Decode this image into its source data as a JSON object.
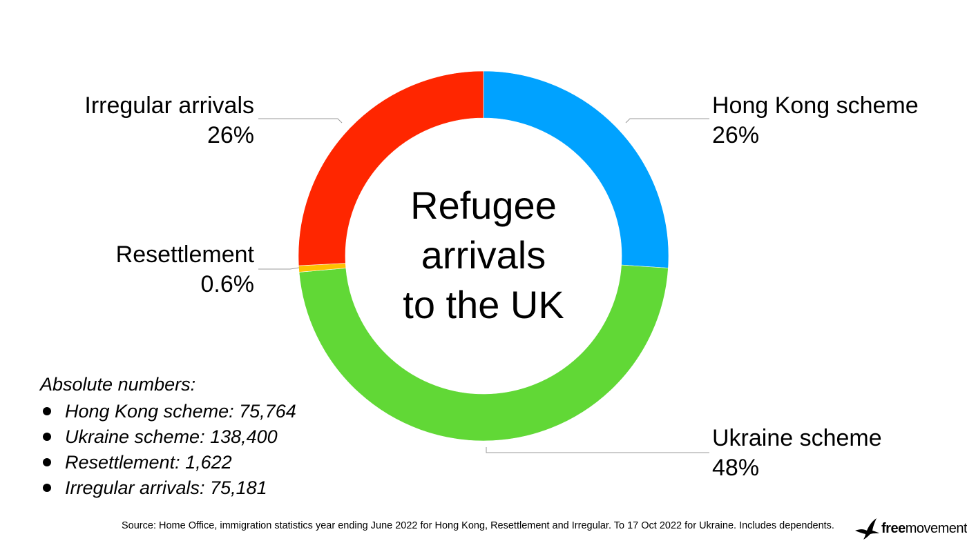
{
  "chart_data": {
    "type": "pie",
    "variant": "donut",
    "title": "Refugee arrivals to the UK",
    "title_lines": [
      "Refugee",
      "arrivals",
      "to the UK"
    ],
    "slices": [
      {
        "key": "hongkong",
        "label": "Hong Kong scheme",
        "percent_label": "26%",
        "value": 75764,
        "color": "#00a2ff"
      },
      {
        "key": "ukraine",
        "label": "Ukraine scheme",
        "percent_label": "48%",
        "value": 138400,
        "color": "#61d836"
      },
      {
        "key": "resettlement",
        "label": "Resettlement",
        "percent_label": "0.6%",
        "value": 1622,
        "color": "#ffc000"
      },
      {
        "key": "irregular",
        "label": "Irregular arrivals",
        "percent_label": "26%",
        "value": 75181,
        "color": "#ff2600"
      }
    ]
  },
  "absolute_numbers": {
    "heading": "Absolute numbers:",
    "items": [
      "Hong Kong scheme: 75,764",
      "Ukraine scheme: 138,400",
      "Resettlement: 1,622",
      "Irregular arrivals: 75,181"
    ]
  },
  "source": "Source: Home Office, immigration statistics year ending June 2022 for Hong Kong, Resettlement and Irregular. To 17 Oct 2022 for Ukraine. Includes dependents.",
  "logo": {
    "bold": "free",
    "regular": "movement"
  }
}
